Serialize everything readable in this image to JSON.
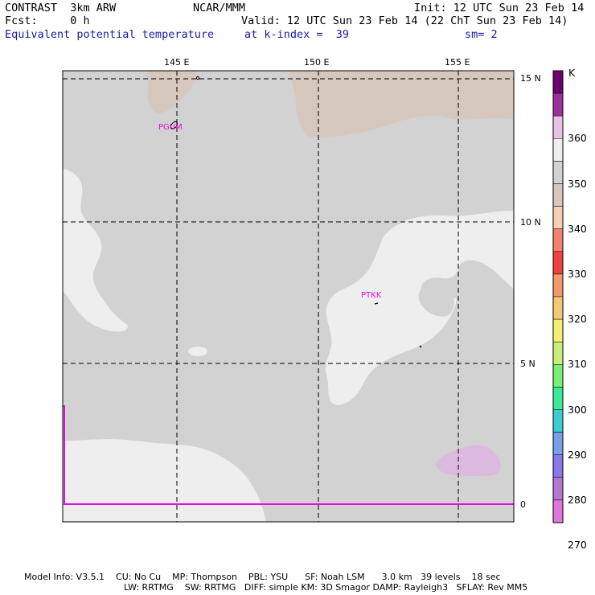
{
  "header": {
    "line1_left": "CONTRAST  3km ARW",
    "line1_mid": "NCAR/MMM",
    "line1_right": "Init: 12 UTC Sun 23 Feb 14",
    "line2_left": "Fcst:     0 h",
    "line2_right": "Valid: 12 UTC Sun 23 Feb 14 (22 ChT Sun 23 Feb 14)",
    "line3_left": "Equivalent potential temperature",
    "line3_mid": "at k-index =  39",
    "line3_right": "sm= 2"
  },
  "map": {
    "lon_labels": [
      "145 E",
      "150 E",
      "155 E"
    ],
    "lat_labels": [
      "15 N",
      "10 N",
      "5 N",
      "0"
    ],
    "stations": [
      {
        "id": "PGUM",
        "color": "#e010e0"
      },
      {
        "id": "PTKK",
        "color": "#e010e0"
      }
    ],
    "colors": {
      "gray": "#d2d2d2",
      "light": "#eeeeee",
      "tan": "#d6c8bc",
      "lavender": "#dcbae0",
      "grid": "#000000",
      "magenta_line": "#e010e0"
    }
  },
  "colorbar": {
    "unit": "K",
    "labels": [
      "360",
      "350",
      "340",
      "330",
      "320",
      "310",
      "300",
      "290",
      "280",
      "270"
    ],
    "colors": [
      "#6e006e",
      "#9b309b",
      "#e6c3e6",
      "#eeeeee",
      "#d2d2d2",
      "#d6c8bc",
      "#f5cfb6",
      "#f0826e",
      "#f04141",
      "#f09a6e",
      "#f5c878",
      "#f5ef78",
      "#c8ef78",
      "#78ef78",
      "#3ce89a",
      "#3ccdd2",
      "#78a0e6",
      "#8a78e6",
      "#b478d2",
      "#dc78dc"
    ]
  },
  "footer": {
    "line1": "Model Info: V3.5.1    CU: No Cu    MP: Thompson    PBL: YSU      SF: Noah LSM      3.0 km   39 levels    18 sec",
    "line2": "LW: RRTMG    SW: RRTMG   DIFF: simple KM: 3D Smagor DAMP: Rayleigh3   SFLAY: Rev MM5"
  }
}
